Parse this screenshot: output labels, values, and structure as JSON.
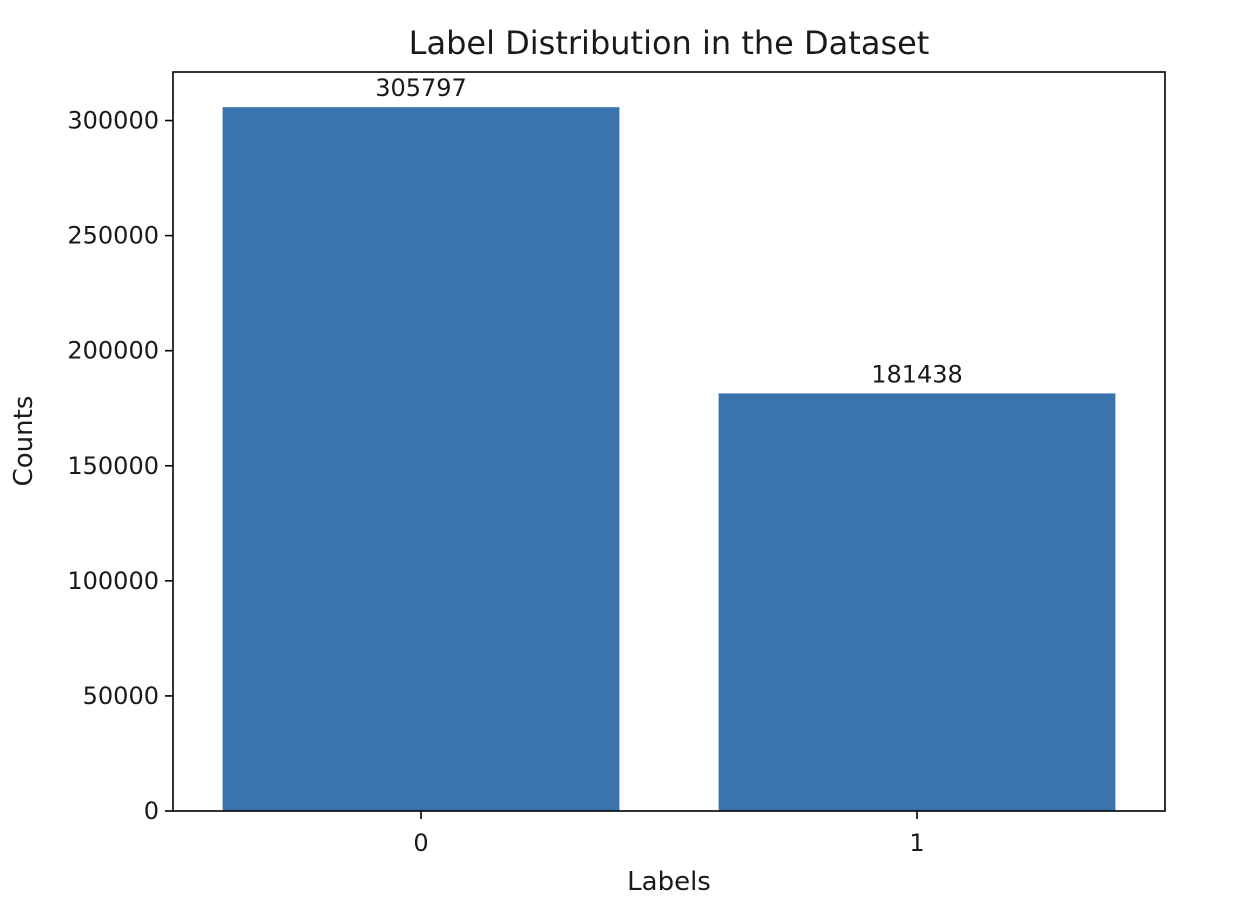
{
  "chart_data": {
    "type": "bar",
    "title": "Label Distribution in the Dataset",
    "xlabel": "Labels",
    "ylabel": "Counts",
    "categories": [
      "0",
      "1"
    ],
    "values": [
      305797,
      181438
    ],
    "data_labels": [
      "305797",
      "181438"
    ],
    "yticks": [
      0,
      50000,
      100000,
      150000,
      200000,
      250000,
      300000
    ],
    "ytick_labels": [
      "0",
      "50000",
      "100000",
      "150000",
      "200000",
      "250000",
      "300000"
    ],
    "ylim": [
      0,
      321087
    ],
    "bar_color": "#3a73ad",
    "grid": false,
    "legend": "none"
  }
}
